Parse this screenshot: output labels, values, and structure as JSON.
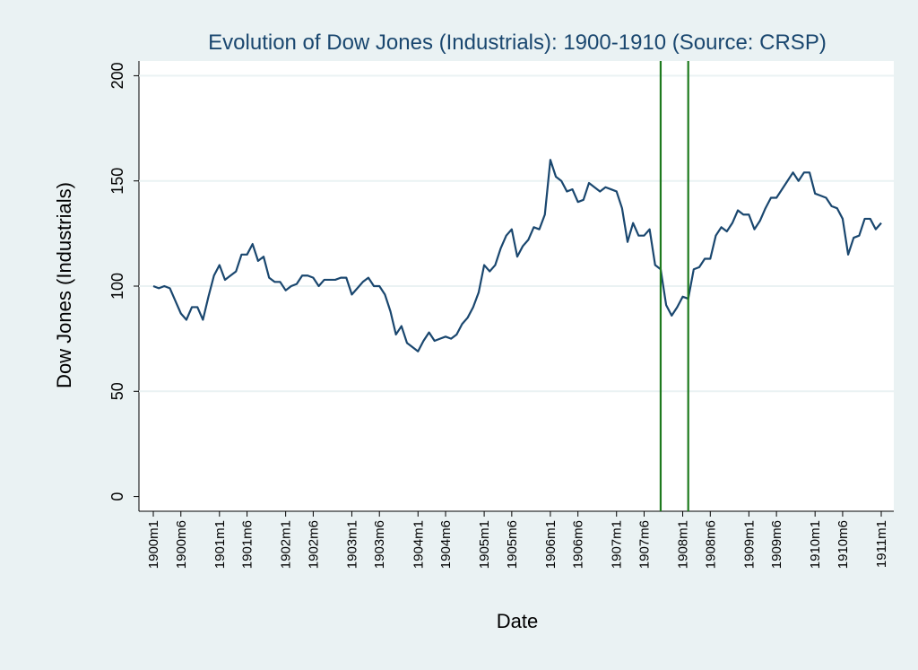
{
  "chart_data": {
    "type": "line",
    "title": "Evolution of Dow Jones (Industrials): 1900-1910 (Source: CRSP)",
    "x_label": "Date",
    "y_label": "Dow Jones (Industrials)",
    "categories": [
      "1900m1",
      null,
      null,
      null,
      null,
      "1900m6",
      null,
      null,
      null,
      null,
      null,
      null,
      "1901m1",
      null,
      null,
      null,
      null,
      "1901m6",
      null,
      null,
      null,
      null,
      null,
      null,
      "1902m1",
      null,
      null,
      null,
      null,
      "1902m6",
      null,
      null,
      null,
      null,
      null,
      null,
      "1903m1",
      null,
      null,
      null,
      null,
      "1903m6",
      null,
      null,
      null,
      null,
      null,
      null,
      "1904m1",
      null,
      null,
      null,
      null,
      "1904m6",
      null,
      null,
      null,
      null,
      null,
      null,
      "1905m1",
      null,
      null,
      null,
      null,
      "1905m6",
      null,
      null,
      null,
      null,
      null,
      null,
      "1906m1",
      null,
      null,
      null,
      null,
      "1906m6",
      null,
      null,
      null,
      null,
      null,
      null,
      "1907m1",
      null,
      null,
      null,
      null,
      "1907m6",
      null,
      null,
      null,
      null,
      null,
      null,
      "1908m1",
      null,
      null,
      null,
      null,
      "1908m6",
      null,
      null,
      null,
      null,
      null,
      null,
      "1909m1",
      null,
      null,
      null,
      null,
      "1909m6",
      null,
      null,
      null,
      null,
      null,
      null,
      "1910m1",
      null,
      null,
      null,
      null,
      "1910m6",
      null,
      null,
      null,
      null,
      null,
      null,
      "1911m1"
    ],
    "values": [
      100,
      99,
      100,
      99,
      93,
      87,
      84,
      90,
      90,
      84,
      95,
      105,
      110,
      103,
      105,
      107,
      115,
      115,
      120,
      112,
      114,
      104,
      102,
      102,
      98,
      100,
      101,
      105,
      105,
      104,
      100,
      103,
      103,
      103,
      104,
      104,
      96,
      99,
      102,
      104,
      100,
      100,
      96,
      88,
      77,
      81,
      73,
      71,
      69,
      74,
      78,
      74,
      75,
      76,
      75,
      77,
      82,
      85,
      90,
      97,
      110,
      107,
      110,
      118,
      124,
      127,
      114,
      119,
      122,
      128,
      127,
      134,
      160,
      152,
      150,
      145,
      146,
      140,
      141,
      149,
      147,
      145,
      147,
      146,
      145,
      137,
      121,
      130,
      124,
      124,
      127,
      110,
      108,
      91,
      86,
      90,
      95,
      94,
      108,
      109,
      113,
      113,
      124,
      128,
      126,
      130,
      136,
      134,
      134,
      127,
      131,
      137,
      142,
      142,
      146,
      150,
      154,
      150,
      154,
      154,
      144,
      143,
      142,
      138,
      137,
      132,
      115,
      123,
      124,
      132,
      132,
      127,
      130
    ],
    "color": "#1a476f",
    "vlines": [
      92,
      97
    ],
    "vline_color": "#1e7a1e",
    "ylim": [
      -7,
      207
    ],
    "yticks": [
      0,
      50,
      100,
      150,
      200
    ],
    "grid": true
  }
}
